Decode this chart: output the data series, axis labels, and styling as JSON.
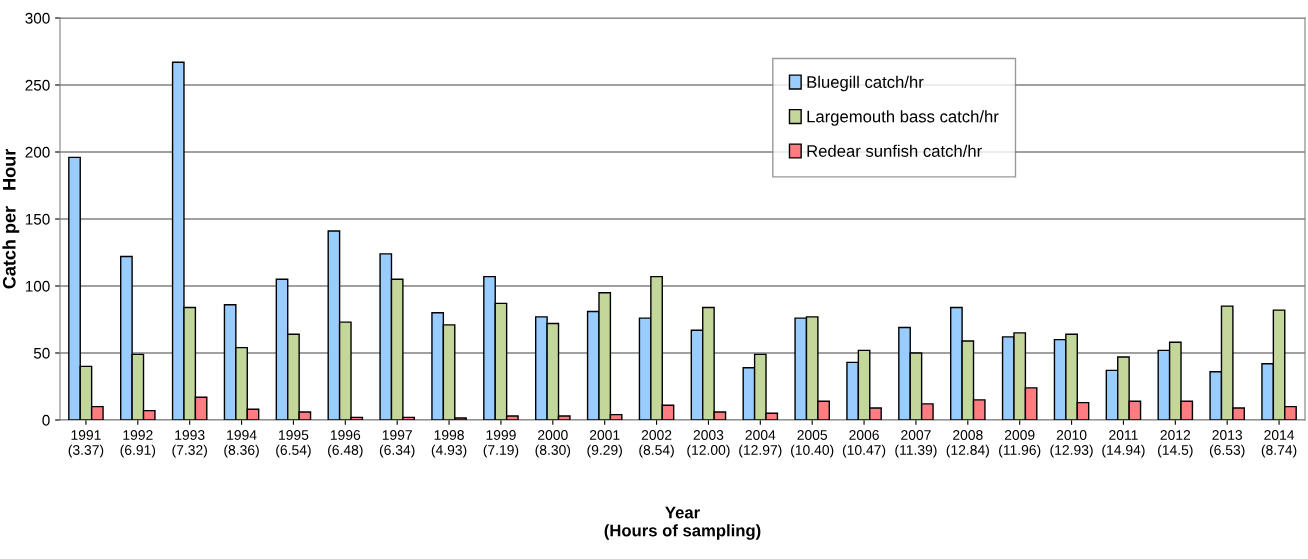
{
  "chart_data": {
    "type": "bar",
    "categories": [
      "1991\n(3.37)",
      "1992\n(6.91)",
      "1993\n(7.32)",
      "1994\n(8.36)",
      "1995\n(6.54)",
      "1996\n(6.48)",
      "1997\n(6.34)",
      "1998\n(4.93)",
      "1999\n(7.19)",
      "2000\n(8.30)",
      "2001\n(9.29)",
      "2002\n(8.54)",
      "2003\n(12.00)",
      "2004\n(12.97)",
      "2005\n(10.40)",
      "2006\n(10.47)",
      "2007\n(11.39)",
      "2008\n(12.84)",
      "2009\n(11.96)",
      "2010\n(12.93)",
      "2011\n(14.94)",
      "2012\n(14.5)",
      "2013\n(6.53)",
      "2014\n(8.74)"
    ],
    "series": [
      {
        "name": "Bluegill catch/hr",
        "color": "#99ccff",
        "values": [
          196,
          122,
          267,
          86,
          105,
          141,
          124,
          80,
          107,
          77,
          81,
          76,
          67,
          39,
          76,
          43,
          69,
          84,
          62,
          60,
          37,
          52,
          36,
          42
        ]
      },
      {
        "name": "Largemouth bass catch/hr",
        "color": "#c4d79b",
        "values": [
          40,
          49,
          84,
          54,
          64,
          73,
          105,
          71,
          87,
          72,
          95,
          107,
          84,
          49,
          77,
          52,
          50,
          59,
          65,
          64,
          47,
          58,
          85,
          82
        ]
      },
      {
        "name": "Redear sunfish catch/hr",
        "color": "#ff7c80",
        "values": [
          10,
          7,
          17,
          8,
          6,
          2,
          2,
          1.5,
          3,
          3,
          4,
          11,
          6,
          5,
          14,
          9,
          12,
          15,
          24,
          13,
          14,
          14,
          9,
          10
        ]
      }
    ],
    "xlabel": "Year\n(Hours of sampling)",
    "ylabel": "Catch per   Hour",
    "ylim": [
      0,
      300
    ],
    "yticks": [
      0,
      50,
      100,
      150,
      200,
      250,
      300
    ],
    "grid": "y",
    "legend": "top"
  }
}
